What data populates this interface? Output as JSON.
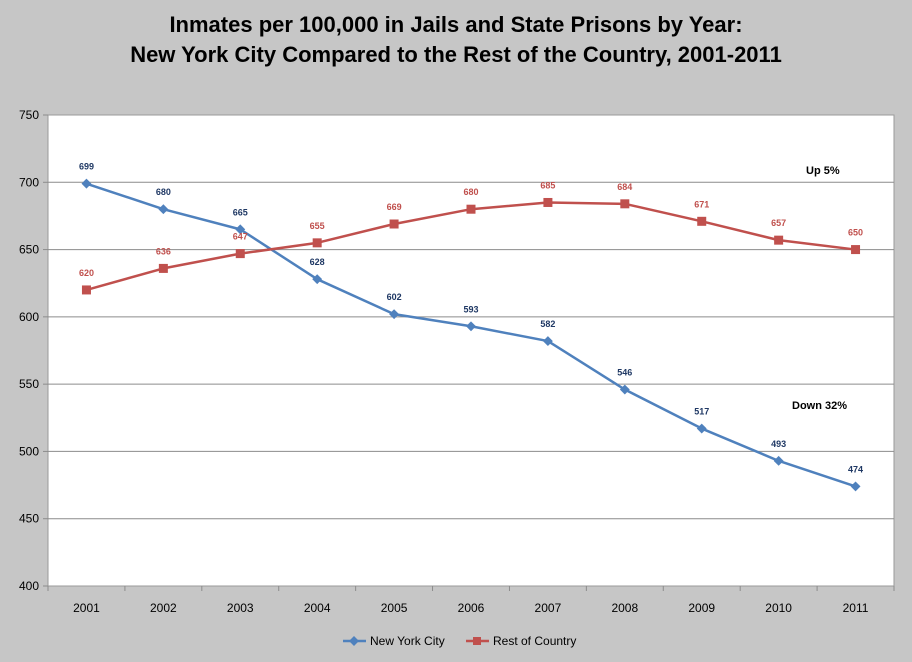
{
  "chart_data": {
    "type": "line",
    "title_line1": "Inmates per 100,000 in Jails and State Prisons by Year:",
    "title_line2": "New York City Compared to the Rest of the Country, 2001-2011",
    "categories": [
      "2001",
      "2002",
      "2003",
      "2004",
      "2005",
      "2006",
      "2007",
      "2008",
      "2009",
      "2010",
      "2011"
    ],
    "ylim": [
      400,
      750
    ],
    "yticks": [
      400,
      450,
      500,
      550,
      600,
      650,
      700,
      750
    ],
    "grid": true,
    "legend_position": "bottom",
    "series": [
      {
        "name": "New York City",
        "values": [
          699,
          680,
          665,
          628,
          602,
          593,
          582,
          546,
          517,
          493,
          474
        ],
        "color": "#4f81bd",
        "label_color": "#1f3864",
        "marker": "diamond"
      },
      {
        "name": "Rest of Country",
        "values": [
          620,
          636,
          647,
          655,
          669,
          680,
          685,
          684,
          671,
          657,
          650
        ],
        "color": "#c0504d",
        "label_color": "#c0504d",
        "marker": "square"
      }
    ],
    "annotations": [
      "Up 5%",
      "Down 32%"
    ]
  }
}
